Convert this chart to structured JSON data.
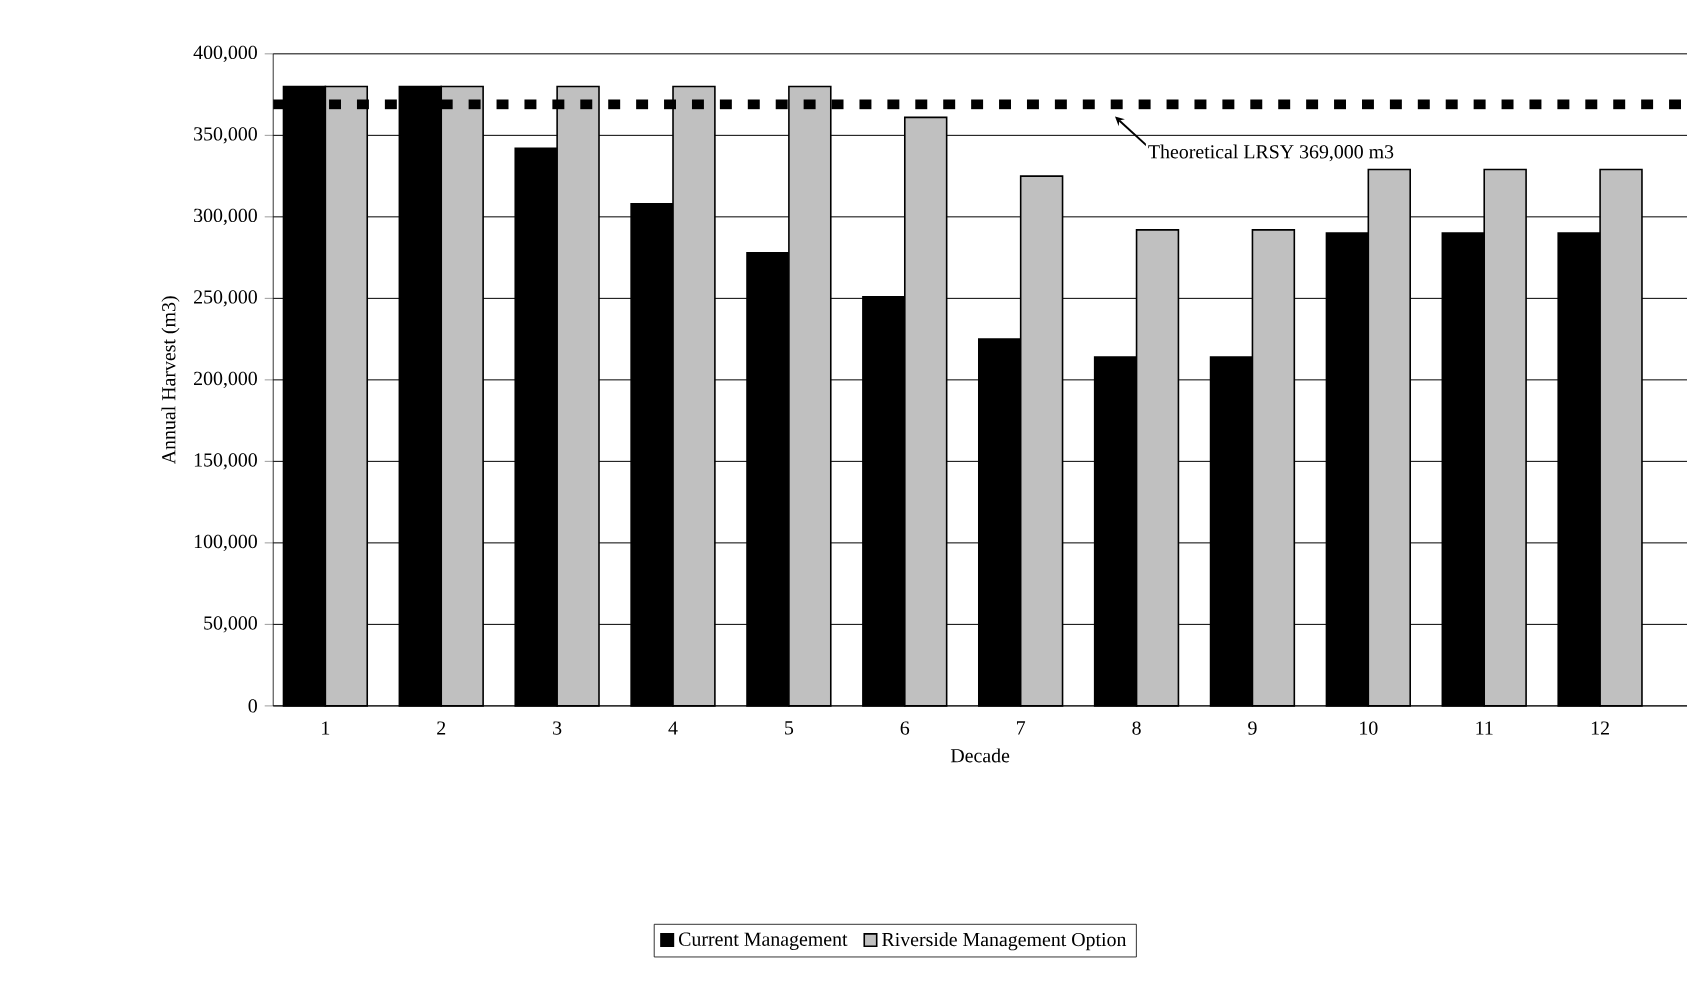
{
  "chart_data": {
    "type": "bar",
    "xlabel": "Decade",
    "ylabel": "Annual Harvest (m3)",
    "categories": [
      "1",
      "2",
      "3",
      "4",
      "5",
      "6",
      "7",
      "8",
      "9",
      "10",
      "11",
      "12"
    ],
    "series": [
      {
        "name": "Current Management",
        "color": "#000000",
        "values": [
          380000,
          380000,
          342000,
          308000,
          278000,
          251000,
          225000,
          214000,
          214000,
          290000,
          290000,
          290000
        ]
      },
      {
        "name": "Riverside Management Option",
        "color": "#c0c0c0",
        "values": [
          380000,
          380000,
          380000,
          380000,
          380000,
          361000,
          325000,
          292000,
          292000,
          329000,
          329000,
          329000
        ]
      }
    ],
    "ylim": [
      0,
      400000
    ],
    "yticks": [
      {
        "value": 0,
        "label": "0"
      },
      {
        "value": 50000,
        "label": "50,000"
      },
      {
        "value": 100000,
        "label": "100,000"
      },
      {
        "value": 150000,
        "label": "150,000"
      },
      {
        "value": 200000,
        "label": "200,000"
      },
      {
        "value": 250000,
        "label": "250,000"
      },
      {
        "value": 300000,
        "label": "300,000"
      },
      {
        "value": 350000,
        "label": "350,000"
      },
      {
        "value": 400000,
        "label": "400,000"
      }
    ],
    "ref_lines": [
      {
        "axis": "y",
        "value": 369000,
        "label": "Theoretical LRSY 369,000 m3",
        "color": "#000000",
        "line_style": "dotted"
      }
    ],
    "grid": "y",
    "legend": "bottom"
  }
}
